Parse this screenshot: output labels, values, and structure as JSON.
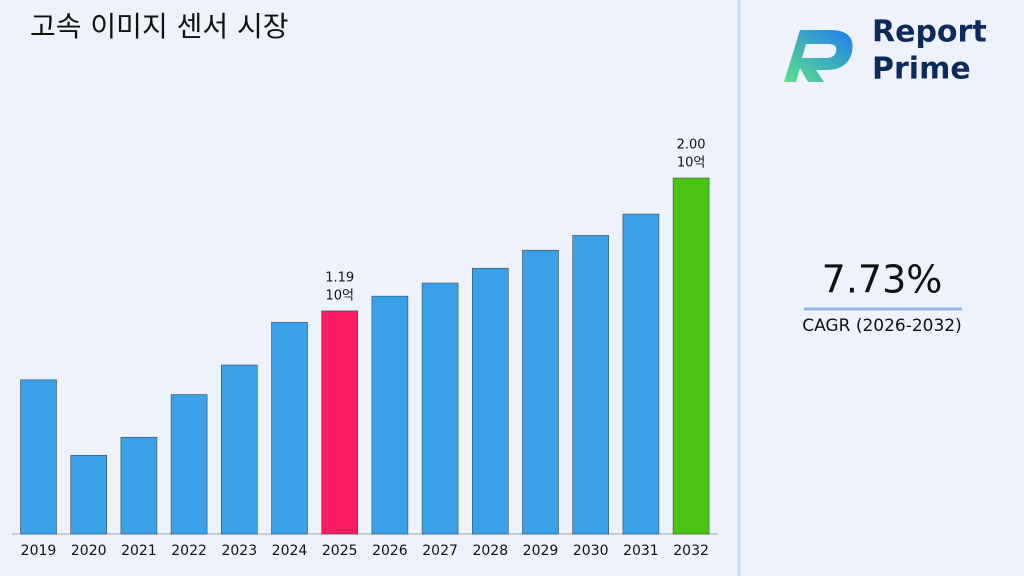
{
  "chart_data": {
    "type": "bar",
    "title": "고속 이미지 센서 시장",
    "categories": [
      "2019",
      "2020",
      "2021",
      "2022",
      "2023",
      "2024",
      "2025",
      "2026",
      "2027",
      "2028",
      "2029",
      "2030",
      "2031",
      "2032"
    ],
    "values": [
      0.77,
      0.31,
      0.42,
      0.68,
      0.86,
      1.12,
      1.19,
      1.28,
      1.36,
      1.45,
      1.56,
      1.65,
      1.78,
      2.0
    ],
    "value_labels": [
      null,
      null,
      null,
      null,
      null,
      null,
      "1.19",
      null,
      null,
      null,
      null,
      null,
      null,
      "2.00"
    ],
    "unit_label": "10억",
    "colors": [
      "#3aa0e8",
      "#3aa0e8",
      "#3aa0e8",
      "#3aa0e8",
      "#3aa0e8",
      "#3aa0e8",
      "#fc1c64",
      "#3aa0e8",
      "#3aa0e8",
      "#3aa0e8",
      "#3aa0e8",
      "#3aa0e8",
      "#3aa0e8",
      "#4cc414"
    ],
    "ylim": [
      -0.17,
      2.5
    ],
    "grid": false
  },
  "cagr": {
    "value": "7.73%",
    "label": "CAGR (2026-2032)"
  },
  "logo": {
    "line1": "Report",
    "line2": "Prime"
  }
}
